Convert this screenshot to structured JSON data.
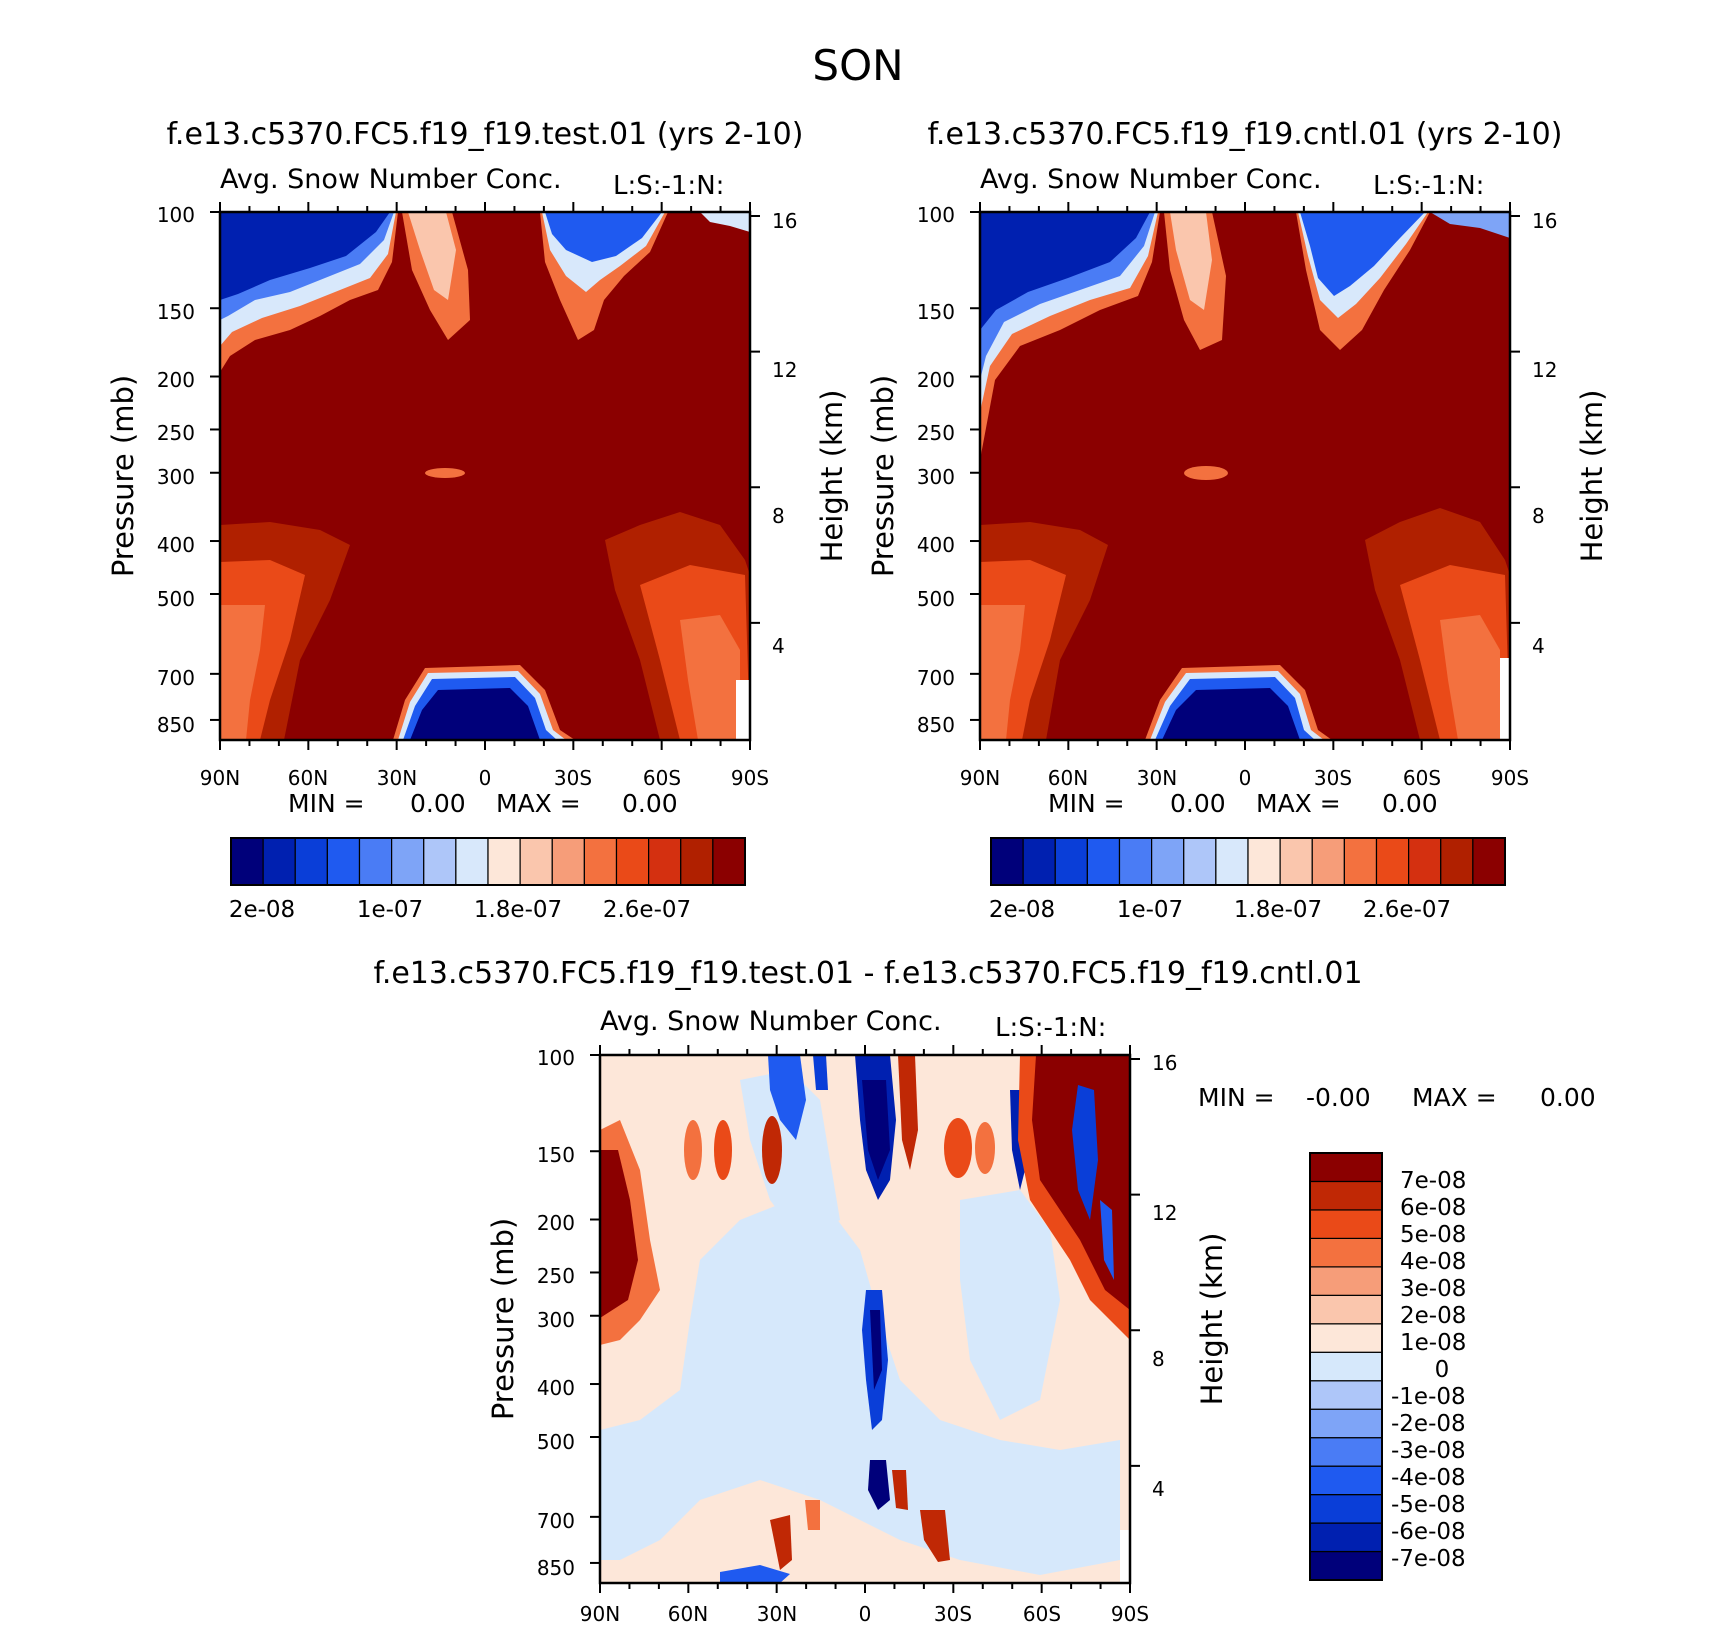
{
  "figure": {
    "title": "SON"
  },
  "colors": {
    "abs_palette": [
      "#00007a",
      "#0020b0",
      "#0a3ed8",
      "#1f5af0",
      "#4a7cf5",
      "#7ea4f7",
      "#aec6f9",
      "#d8e8fb",
      "#fde7d9",
      "#fac6ad",
      "#f69d79",
      "#f3713f",
      "#ea4a18",
      "#d43010",
      "#b02000",
      "#8b0000"
    ],
    "diff_palette": [
      "#00007a",
      "#0020b0",
      "#0a3ed8",
      "#1f5af0",
      "#4a7cf5",
      "#7ea4f7",
      "#aec6f9",
      "#d6e8fb",
      "#fde7d9",
      "#fac6ad",
      "#f69d79",
      "#f3713f",
      "#ea4a18",
      "#c02805",
      "#8b0000"
    ]
  },
  "chart_data": [
    {
      "type": "heatmap",
      "id": "test",
      "case_title": "f.e13.c5370.FC5.f19_f19.test.01 (yrs 2-10)",
      "variable": "Avg. Snow Number Conc.",
      "corner_label": "L:S:-1:N:",
      "xlabel": "",
      "ylabel": "Pressure (mb)",
      "ylabel_right": "Height (km)",
      "x_ticks": [
        "90N",
        "60N",
        "30N",
        "0",
        "30S",
        "60S",
        "90S"
      ],
      "y_ticks": [
        "100",
        "150",
        "200",
        "250",
        "300",
        "400",
        "500",
        "700",
        "850"
      ],
      "y_ticks_right": [
        "16",
        "12",
        "8",
        "4"
      ],
      "ylim": [
        100,
        925
      ],
      "min_label": "MIN =",
      "min_value": "0.00",
      "max_label": "MAX =",
      "max_value": "0.00",
      "colorbar_labels": [
        "2e-08",
        "1e-07",
        "1.8e-07",
        "2.6e-07"
      ]
    },
    {
      "type": "heatmap",
      "id": "cntl",
      "case_title": "f.e13.c5370.FC5.f19_f19.cntl.01 (yrs 2-10)",
      "variable": "Avg. Snow Number Conc.",
      "corner_label": "L:S:-1:N:",
      "xlabel": "",
      "ylabel": "Pressure (mb)",
      "ylabel_right": "Height (km)",
      "x_ticks": [
        "90N",
        "60N",
        "30N",
        "0",
        "30S",
        "60S",
        "90S"
      ],
      "y_ticks": [
        "100",
        "150",
        "200",
        "250",
        "300",
        "400",
        "500",
        "700",
        "850"
      ],
      "y_ticks_right": [
        "16",
        "12",
        "8",
        "4"
      ],
      "ylim": [
        100,
        925
      ],
      "min_label": "MIN =",
      "min_value": "0.00",
      "max_label": "MAX =",
      "max_value": "0.00",
      "colorbar_labels": [
        "2e-08",
        "1e-07",
        "1.8e-07",
        "2.6e-07"
      ]
    },
    {
      "type": "heatmap",
      "id": "diff",
      "case_title": "f.e13.c5370.FC5.f19_f19.test.01 - f.e13.c5370.FC5.f19_f19.cntl.01",
      "variable": "Avg. Snow Number Conc.",
      "corner_label": "L:S:-1:N:",
      "xlabel": "",
      "ylabel": "Pressure (mb)",
      "ylabel_right": "Height (km)",
      "x_ticks": [
        "90N",
        "60N",
        "30N",
        "0",
        "30S",
        "60S",
        "90S"
      ],
      "y_ticks": [
        "100",
        "150",
        "200",
        "250",
        "300",
        "400",
        "500",
        "700",
        "850"
      ],
      "y_ticks_right": [
        "16",
        "12",
        "8",
        "4"
      ],
      "ylim": [
        100,
        925
      ],
      "min_label": "MIN =",
      "min_value": "-0.00",
      "max_label": "MAX =",
      "max_value": "0.00",
      "colorbar_labels": [
        "7e-08",
        "6e-08",
        "5e-08",
        "4e-08",
        "3e-08",
        "2e-08",
        "1e-08",
        "0",
        "-1e-08",
        "-2e-08",
        "-3e-08",
        "-4e-08",
        "-5e-08",
        "-6e-08",
        "-7e-08"
      ]
    }
  ]
}
